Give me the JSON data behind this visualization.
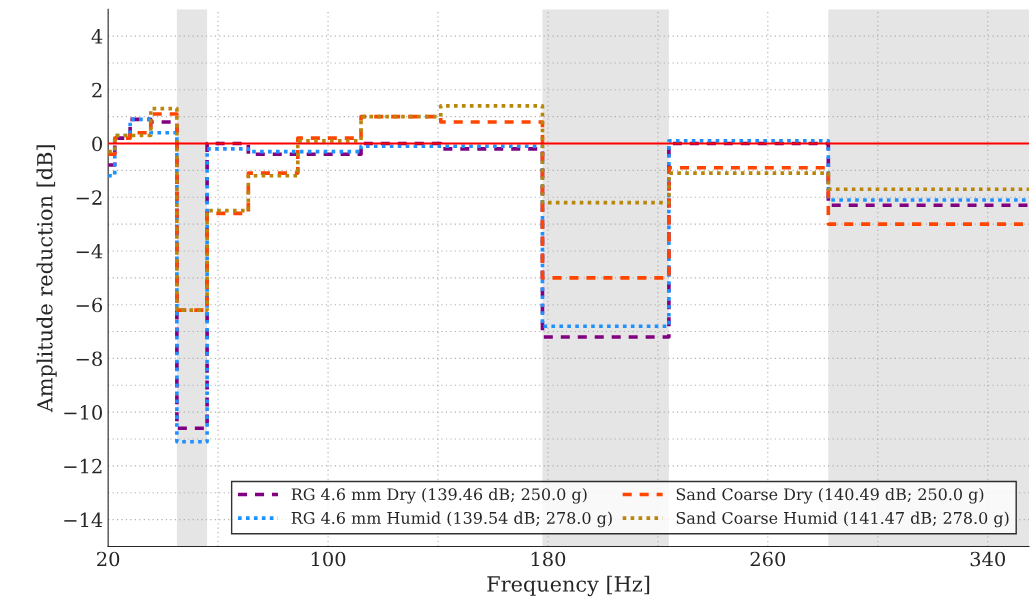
{
  "chart_data": {
    "type": "step",
    "xlabel": "Frequency [Hz]",
    "ylabel": "Amplitude reduction [dB]",
    "x": [
      20,
      22.4,
      28,
      35.5,
      45,
      56,
      71,
      89,
      112,
      141,
      178,
      224,
      282,
      355
    ],
    "series": [
      {
        "name": "RG 4.6 mm Dry (139.46 dB; 250.0 g)",
        "color": "#800080",
        "line_style": "dashed",
        "values": [
          -0.8,
          0.2,
          0.9,
          0.8,
          -10.6,
          0.0,
          -0.4,
          -0.4,
          0.0,
          -0.2,
          -7.2,
          0.0,
          -2.3,
          -2.3
        ]
      },
      {
        "name": "RG 4.6 mm Humid (139.54 dB; 278.0 g)",
        "color": "#1e90ff",
        "line_style": "dotted",
        "values": [
          -1.2,
          0.3,
          0.9,
          0.4,
          -11.1,
          -0.2,
          -0.3,
          -0.3,
          -0.1,
          -0.1,
          -6.8,
          0.1,
          -2.1,
          -2.1
        ]
      },
      {
        "name": "Sand Coarse Dry (140.49 dB; 250.0 g)",
        "color": "#ff4500",
        "line_style": "dashed",
        "values": [
          -0.4,
          0.2,
          0.4,
          1.1,
          -6.2,
          -2.6,
          -1.1,
          0.2,
          1.0,
          0.8,
          -5.0,
          -0.9,
          -3.0,
          -3.0
        ]
      },
      {
        "name": "Sand Coarse Humid (141.47 dB; 278.0 g)",
        "color": "#b8860b",
        "line_style": "dotted",
        "values": [
          -0.3,
          0.3,
          0.3,
          1.3,
          -6.2,
          -2.5,
          -1.2,
          0.1,
          1.0,
          1.4,
          -2.2,
          -1.1,
          -1.7,
          -1.7
        ]
      }
    ],
    "xlim": [
      20,
      355
    ],
    "ylim": [
      -15,
      5
    ],
    "xticks": [
      20,
      {
        "value": 60,
        "label": null
      },
      100,
      {
        "value": 140,
        "label": null
      },
      180,
      {
        "value": 220,
        "label": null
      },
      260,
      {
        "value": 300,
        "label": null
      },
      340
    ],
    "yticks": [
      {
        "value": -14,
        "label": "−14"
      },
      {
        "value": -13,
        "label": null
      },
      {
        "value": -12,
        "label": "−12"
      },
      {
        "value": -11,
        "label": null
      },
      {
        "value": -10,
        "label": "−10"
      },
      {
        "value": -9,
        "label": null
      },
      {
        "value": -8,
        "label": "−8"
      },
      {
        "value": -7,
        "label": null
      },
      {
        "value": -6,
        "label": "−6"
      },
      {
        "value": -5,
        "label": null
      },
      {
        "value": -4,
        "label": "−4"
      },
      {
        "value": -3,
        "label": null
      },
      {
        "value": -2,
        "label": "−2"
      },
      {
        "value": -1,
        "label": null
      },
      0,
      {
        "value": 1,
        "label": null
      },
      2,
      {
        "value": 3,
        "label": null
      },
      4
    ],
    "ref_lines": [
      {
        "axis": "y",
        "value": 0,
        "color": "#ff0000",
        "line_style": "solid"
      }
    ],
    "bands": [
      {
        "axis": "x",
        "from": 45,
        "to": 56,
        "color": "#e5e5e5"
      },
      {
        "axis": "x",
        "from": 178,
        "to": 224,
        "color": "#e5e5e5"
      },
      {
        "axis": "x",
        "from": 282,
        "to": 355,
        "color": "#e5e5e5"
      }
    ],
    "grid": true,
    "legend": "bottom right"
  }
}
